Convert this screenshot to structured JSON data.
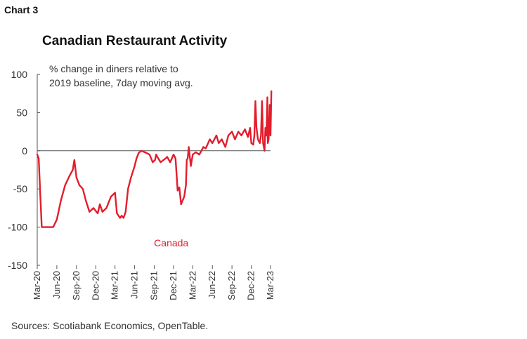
{
  "header": {
    "chart_label": "Chart 3",
    "title": "Canadian Restaurant Activity"
  },
  "note_lines": [
    "% change in diners relative to",
    "2019 baseline, 7day moving avg."
  ],
  "source": "Sources: Scotiabank Economics, OpenTable.",
  "colors": {
    "series": "#e31d2c",
    "axis": "#555555"
  },
  "chart_data": {
    "type": "line",
    "title": "Canadian Restaurant Activity",
    "xlabel": "",
    "ylabel": "% change in diners relative to 2019 baseline, 7day moving avg.",
    "ylim": [
      -150,
      100
    ],
    "yticks": [
      100,
      50,
      0,
      -50,
      -100,
      -150
    ],
    "xlim": [
      "2020-03",
      "2023-03"
    ],
    "xticks": [
      "Mar-20",
      "Jun-20",
      "Sep-20",
      "Dec-20",
      "Mar-21",
      "Jun-21",
      "Sep-21",
      "Dec-21",
      "Mar-22",
      "Jun-22",
      "Sep-22",
      "Dec-22",
      "Mar-23"
    ],
    "grid": false,
    "series": [
      {
        "name": "Canada",
        "x": [
          "2020-03-01",
          "2020-03-08",
          "2020-03-15",
          "2020-03-22",
          "2020-04-01",
          "2020-05-01",
          "2020-05-15",
          "2020-06-01",
          "2020-06-20",
          "2020-07-10",
          "2020-08-01",
          "2020-08-15",
          "2020-08-22",
          "2020-09-01",
          "2020-09-15",
          "2020-10-01",
          "2020-10-15",
          "2020-11-01",
          "2020-11-20",
          "2020-12-10",
          "2020-12-20",
          "2021-01-01",
          "2021-01-20",
          "2021-02-10",
          "2021-03-01",
          "2021-03-10",
          "2021-03-25",
          "2021-04-01",
          "2021-04-10",
          "2021-04-20",
          "2021-05-01",
          "2021-05-15",
          "2021-06-01",
          "2021-06-10",
          "2021-06-20",
          "2021-07-01",
          "2021-07-20",
          "2021-08-10",
          "2021-08-25",
          "2021-09-05",
          "2021-09-10",
          "2021-09-20",
          "2021-10-01",
          "2021-10-15",
          "2021-10-25",
          "2021-11-01",
          "2021-11-15",
          "2021-12-01",
          "2021-12-10",
          "2021-12-20",
          "2021-12-28",
          "2022-01-05",
          "2022-01-20",
          "2022-01-28",
          "2022-02-01",
          "2022-02-05",
          "2022-02-10",
          "2022-02-20",
          "2022-03-01",
          "2022-03-15",
          "2022-04-01",
          "2022-04-20",
          "2022-05-01",
          "2022-05-20",
          "2022-06-01",
          "2022-06-20",
          "2022-07-01",
          "2022-07-15",
          "2022-08-01",
          "2022-08-15",
          "2022-09-01",
          "2022-09-15",
          "2022-10-01",
          "2022-10-15",
          "2022-11-01",
          "2022-11-15",
          "2022-11-25",
          "2022-12-01",
          "2022-12-10",
          "2022-12-15",
          "2022-12-20",
          "2022-12-25",
          "2023-01-01",
          "2023-01-10",
          "2023-01-15",
          "2023-01-20",
          "2023-01-25",
          "2023-02-01",
          "2023-02-05",
          "2023-02-10",
          "2023-02-14",
          "2023-02-16",
          "2023-02-20",
          "2023-02-25",
          "2023-03-01",
          "2023-03-05"
        ],
        "values": [
          -5,
          -10,
          -55,
          -100,
          -100,
          -100,
          -100,
          -90,
          -65,
          -45,
          -32,
          -25,
          -12,
          -35,
          -45,
          -50,
          -65,
          -80,
          -75,
          -82,
          -70,
          -80,
          -75,
          -60,
          -55,
          -82,
          -88,
          -85,
          -88,
          -80,
          -50,
          -35,
          -20,
          -10,
          -3,
          0,
          -2,
          -5,
          -15,
          -12,
          -5,
          -10,
          -15,
          -12,
          -10,
          -8,
          -15,
          -5,
          -10,
          -52,
          -48,
          -70,
          -60,
          -45,
          -12,
          -10,
          5,
          -20,
          -5,
          -2,
          -5,
          5,
          3,
          15,
          10,
          20,
          10,
          15,
          5,
          20,
          25,
          15,
          25,
          20,
          28,
          18,
          30,
          10,
          8,
          20,
          65,
          30,
          15,
          10,
          20,
          65,
          10,
          0,
          30,
          20,
          70,
          10,
          15,
          60,
          20,
          78
        ]
      }
    ],
    "annotations": [
      {
        "text": "Canada",
        "x": "2021-11-20",
        "y": -125
      }
    ]
  }
}
